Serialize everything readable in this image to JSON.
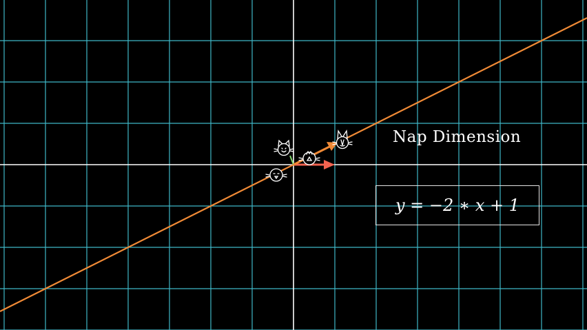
{
  "label": "Nap Dimension",
  "equation": "y = −2 ∗ x + 1",
  "colors": {
    "background": "#000000",
    "grid": "#3fb8c8",
    "axis": "#ffffff",
    "line": "#f08a36",
    "vector_i": "#f26350",
    "vector_j": "#f08a36",
    "vector_small": "#7ed36b",
    "icon": "#ffffff"
  },
  "icons": [
    "cat-face-icon",
    "cat-face-icon",
    "cat-face-icon",
    "cat-face-icon"
  ]
}
